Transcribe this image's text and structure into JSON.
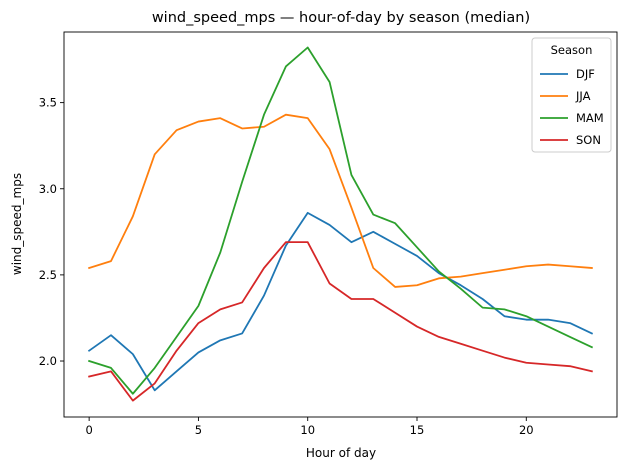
{
  "chart_data": {
    "type": "line",
    "title": "wind_speed_mps — hour-of-day by season (median)",
    "xlabel": "Hour of day",
    "ylabel": "wind_speed_mps",
    "xlim": [
      -1.15,
      24.15
    ],
    "ylim": [
      1.675,
      3.91
    ],
    "xticks": [
      0,
      5,
      10,
      15,
      20
    ],
    "xtick_labels": [
      "0",
      "5",
      "10",
      "15",
      "20"
    ],
    "yticks": [
      2.0,
      2.5,
      3.0,
      3.5
    ],
    "ytick_labels": [
      "2.0",
      "2.5",
      "3.0",
      "3.5"
    ],
    "grid": false,
    "legend": {
      "title": "Season",
      "placement": "top-right"
    },
    "x": [
      0,
      1,
      2,
      3,
      4,
      5,
      6,
      7,
      8,
      9,
      10,
      11,
      12,
      13,
      14,
      15,
      16,
      17,
      18,
      19,
      20,
      21,
      22,
      23
    ],
    "series": [
      {
        "name": "DJF",
        "color": "#1f77b4",
        "values": [
          2.06,
          2.15,
          2.04,
          1.83,
          1.94,
          2.05,
          2.12,
          2.16,
          2.38,
          2.67,
          2.86,
          2.79,
          2.69,
          2.75,
          2.68,
          2.61,
          2.51,
          2.44,
          2.36,
          2.26,
          2.24,
          2.24,
          2.22,
          2.16
        ]
      },
      {
        "name": "JJA",
        "color": "#ff7f0e",
        "values": [
          2.54,
          2.58,
          2.84,
          3.2,
          3.34,
          3.39,
          3.41,
          3.35,
          3.36,
          3.43,
          3.41,
          3.23,
          2.89,
          2.54,
          2.43,
          2.44,
          2.48,
          2.49,
          2.51,
          2.53,
          2.55,
          2.56,
          2.55,
          2.54
        ]
      },
      {
        "name": "MAM",
        "color": "#2ca02c",
        "values": [
          2.0,
          1.96,
          1.81,
          1.96,
          2.14,
          2.32,
          2.63,
          3.04,
          3.43,
          3.71,
          3.82,
          3.62,
          3.08,
          2.85,
          2.8,
          2.66,
          2.52,
          2.42,
          2.31,
          2.3,
          2.26,
          2.2,
          2.14,
          2.08
        ]
      },
      {
        "name": "SON",
        "color": "#d62728",
        "values": [
          1.91,
          1.94,
          1.77,
          1.87,
          2.06,
          2.22,
          2.3,
          2.34,
          2.54,
          2.69,
          2.69,
          2.45,
          2.36,
          2.36,
          2.28,
          2.2,
          2.14,
          2.1,
          2.06,
          2.02,
          1.99,
          1.98,
          1.97,
          1.94
        ]
      }
    ]
  }
}
